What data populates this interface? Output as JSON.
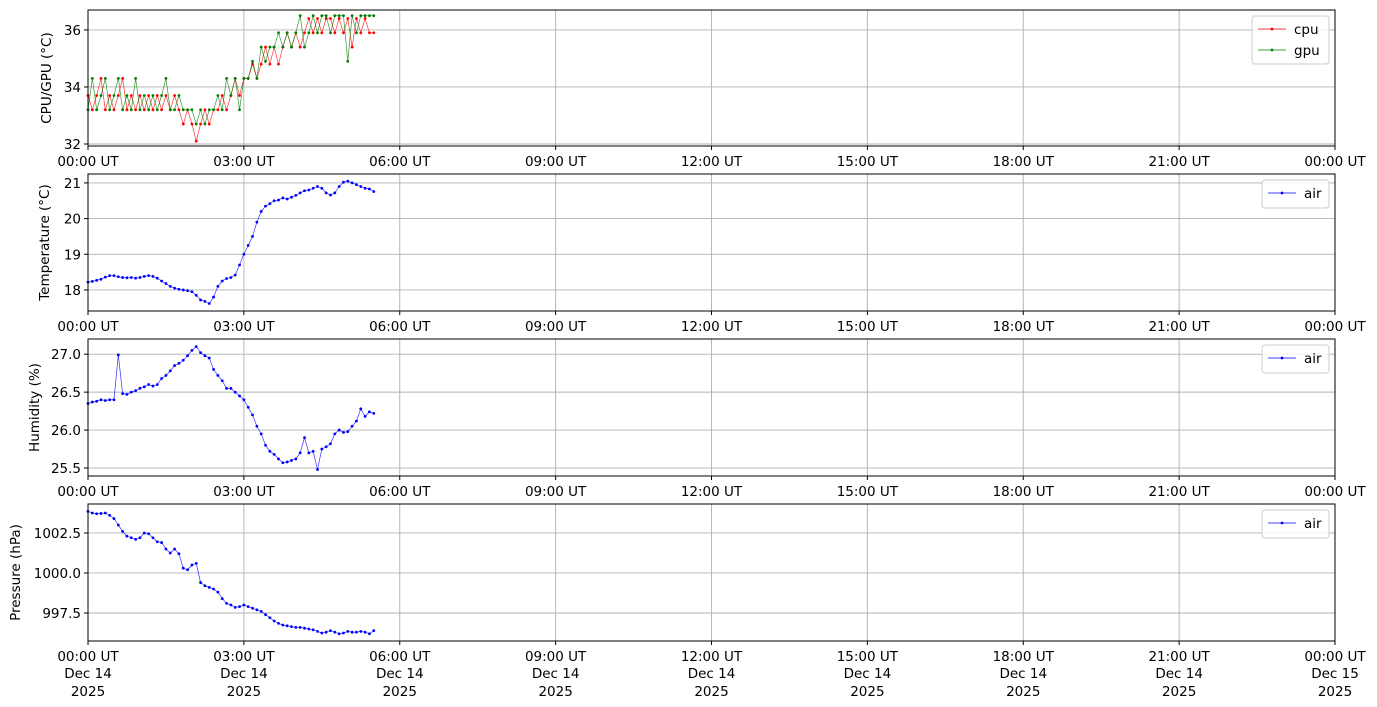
{
  "chart_data": [
    {
      "type": "line",
      "ylabel": "CPU/GPU (°C)",
      "ylim": [
        31.93,
        36.7
      ],
      "yticks": [
        32,
        34,
        36
      ],
      "ytick_labels": [
        "32",
        "34",
        "36"
      ],
      "grid": true,
      "legend_placement": "top-right",
      "series": [
        {
          "name": "cpu",
          "color": "#ff0000",
          "values": [
            33.7,
            33.2,
            33.7,
            34.3,
            33.2,
            33.7,
            33.2,
            33.7,
            34.3,
            33.2,
            33.7,
            33.2,
            33.7,
            33.2,
            33.7,
            33.2,
            33.7,
            33.2,
            33.7,
            33.2,
            33.7,
            33.2,
            32.7,
            33.2,
            32.7,
            32.1,
            32.7,
            33.2,
            32.7,
            33.2,
            33.2,
            33.7,
            33.2,
            33.7,
            34.3,
            33.7,
            34.3,
            34.3,
            34.8,
            34.3,
            34.8,
            35.4,
            34.8,
            35.4,
            34.8,
            35.4,
            35.9,
            35.4,
            35.9,
            35.4,
            35.9,
            36.4,
            35.9,
            36.4,
            35.9,
            36.4,
            36.4,
            35.9,
            36.4,
            35.9,
            36.4,
            35.4,
            36.4,
            35.9,
            36.4,
            35.9,
            35.9
          ]
        },
        {
          "name": "gpu",
          "color": "#008000",
          "values": [
            33.2,
            34.3,
            33.2,
            33.7,
            34.3,
            33.2,
            33.7,
            34.3,
            33.2,
            33.7,
            33.2,
            34.3,
            33.2,
            33.7,
            33.2,
            33.7,
            33.2,
            33.7,
            34.3,
            33.2,
            33.2,
            33.7,
            33.2,
            33.2,
            33.2,
            32.7,
            33.2,
            32.7,
            33.2,
            33.2,
            33.7,
            33.2,
            34.3,
            33.7,
            34.3,
            33.2,
            34.3,
            34.3,
            34.9,
            34.3,
            35.4,
            34.9,
            35.4,
            35.4,
            35.9,
            35.4,
            35.9,
            35.4,
            35.9,
            36.5,
            35.4,
            35.9,
            36.5,
            35.9,
            36.5,
            36.5,
            35.9,
            36.5,
            36.5,
            36.5,
            34.9,
            36.5,
            35.9,
            36.5,
            36.5,
            36.5,
            36.5
          ]
        }
      ]
    },
    {
      "type": "line",
      "ylabel": "Temperature (°C)",
      "ylim": [
        17.41,
        21.25
      ],
      "yticks": [
        18,
        19,
        20,
        21
      ],
      "ytick_labels": [
        "18",
        "19",
        "20",
        "21"
      ],
      "grid": true,
      "legend_placement": "top-right",
      "series": [
        {
          "name": "air",
          "color": "#0000ff",
          "values": [
            18.22,
            18.24,
            18.27,
            18.3,
            18.36,
            18.4,
            18.4,
            18.37,
            18.35,
            18.34,
            18.35,
            18.33,
            18.35,
            18.38,
            18.4,
            18.38,
            18.33,
            18.25,
            18.18,
            18.1,
            18.05,
            18.02,
            18.0,
            17.98,
            17.95,
            17.85,
            17.72,
            17.68,
            17.62,
            17.8,
            18.1,
            18.25,
            18.32,
            18.35,
            18.42,
            18.7,
            19.0,
            19.25,
            19.5,
            19.9,
            20.2,
            20.35,
            20.42,
            20.5,
            20.52,
            20.58,
            20.55,
            20.6,
            20.65,
            20.72,
            20.78,
            20.8,
            20.85,
            20.9,
            20.85,
            20.72,
            20.66,
            20.72,
            20.9,
            21.02,
            21.05,
            21.0,
            20.95,
            20.9,
            20.85,
            20.83,
            20.76
          ]
        }
      ]
    },
    {
      "type": "line",
      "ylabel": "Humidity (%)",
      "ylim": [
        25.395,
        27.2
      ],
      "yticks": [
        25.5,
        26.0,
        26.5,
        27.0
      ],
      "ytick_labels": [
        "25.5",
        "26.0",
        "26.5",
        "27.0"
      ],
      "grid": true,
      "legend_placement": "top-right",
      "series": [
        {
          "name": "air",
          "color": "#0000ff",
          "values": [
            26.35,
            26.37,
            26.38,
            26.4,
            26.39,
            26.4,
            26.4,
            26.99,
            26.48,
            26.47,
            26.5,
            26.52,
            26.55,
            26.57,
            26.6,
            26.58,
            26.6,
            26.68,
            26.72,
            26.78,
            26.85,
            26.88,
            26.92,
            26.98,
            27.05,
            27.1,
            27.02,
            26.98,
            26.95,
            26.8,
            26.72,
            26.65,
            26.55,
            26.55,
            26.5,
            26.45,
            26.4,
            26.3,
            26.2,
            26.05,
            25.95,
            25.8,
            25.72,
            25.68,
            25.62,
            25.57,
            25.58,
            25.6,
            25.62,
            25.7,
            25.9,
            25.7,
            25.72,
            25.48,
            25.75,
            25.78,
            25.82,
            25.95,
            26.0,
            25.97,
            25.98,
            26.05,
            26.12,
            26.28,
            26.18,
            26.24,
            26.22
          ]
        }
      ]
    },
    {
      "type": "line",
      "ylabel": "Pressure (hPa)",
      "ylim": [
        995.75,
        1004.31
      ],
      "yticks": [
        997.5,
        1000.0,
        1002.5
      ],
      "ytick_labels": [
        "997.5",
        "1000.0",
        "1002.5"
      ],
      "grid": true,
      "legend_placement": "top-right",
      "series": [
        {
          "name": "air",
          "color": "#0000ff",
          "values": [
            1003.85,
            1003.75,
            1003.7,
            1003.72,
            1003.75,
            1003.6,
            1003.4,
            1003.0,
            1002.6,
            1002.3,
            1002.2,
            1002.1,
            1002.2,
            1002.5,
            1002.45,
            1002.2,
            1001.95,
            1001.9,
            1001.5,
            1001.25,
            1001.5,
            1001.2,
            1000.3,
            1000.2,
            1000.5,
            1000.6,
            999.4,
            999.2,
            999.1,
            999.0,
            998.8,
            998.4,
            998.1,
            998.0,
            997.85,
            997.9,
            998.0,
            997.9,
            997.8,
            997.7,
            997.6,
            997.4,
            997.2,
            997.0,
            996.85,
            996.75,
            996.7,
            996.65,
            996.6,
            996.6,
            996.55,
            996.5,
            996.45,
            996.35,
            996.25,
            996.3,
            996.4,
            996.3,
            996.2,
            996.25,
            996.35,
            996.3,
            996.3,
            996.35,
            996.3,
            996.2,
            996.4
          ]
        }
      ]
    }
  ],
  "x_axis": {
    "date": "2025-12-14",
    "xlim": [
      "2025-12-14 00:00",
      "2025-12-15 00:00"
    ],
    "times": [
      "00:00",
      "00:05",
      "00:10",
      "00:15",
      "00:20",
      "00:25",
      "00:30",
      "00:35",
      "00:40",
      "00:45",
      "00:50",
      "00:55",
      "01:00",
      "01:05",
      "01:10",
      "01:15",
      "01:20",
      "01:25",
      "01:30",
      "01:35",
      "01:40",
      "01:45",
      "01:50",
      "01:55",
      "02:00",
      "02:05",
      "02:10",
      "02:15",
      "02:20",
      "02:25",
      "02:30",
      "02:35",
      "02:40",
      "02:45",
      "02:50",
      "02:55",
      "03:00",
      "03:05",
      "03:10",
      "03:15",
      "03:20",
      "03:25",
      "03:30",
      "03:35",
      "03:40",
      "03:45",
      "03:50",
      "03:55",
      "04:00",
      "04:05",
      "04:10",
      "04:15",
      "04:20",
      "04:25",
      "04:30",
      "04:35",
      "04:40",
      "04:45",
      "04:50",
      "04:55",
      "05:00",
      "05:05",
      "05:10",
      "05:15",
      "05:20",
      "05:25",
      "05:30"
    ],
    "tick_labels": [
      "00:00 UT",
      "03:00 UT",
      "06:00 UT",
      "09:00 UT",
      "12:00 UT",
      "15:00 UT",
      "18:00 UT",
      "21:00 UT",
      "00:00 UT"
    ],
    "tick_dates": [
      "Dec 14",
      "Dec 14",
      "Dec 14",
      "Dec 14",
      "Dec 14",
      "Dec 14",
      "Dec 14",
      "Dec 14",
      "Dec 15"
    ],
    "tick_years": [
      "2025",
      "2025",
      "2025",
      "2025",
      "2025",
      "2025",
      "2025",
      "2025",
      "2025"
    ]
  }
}
